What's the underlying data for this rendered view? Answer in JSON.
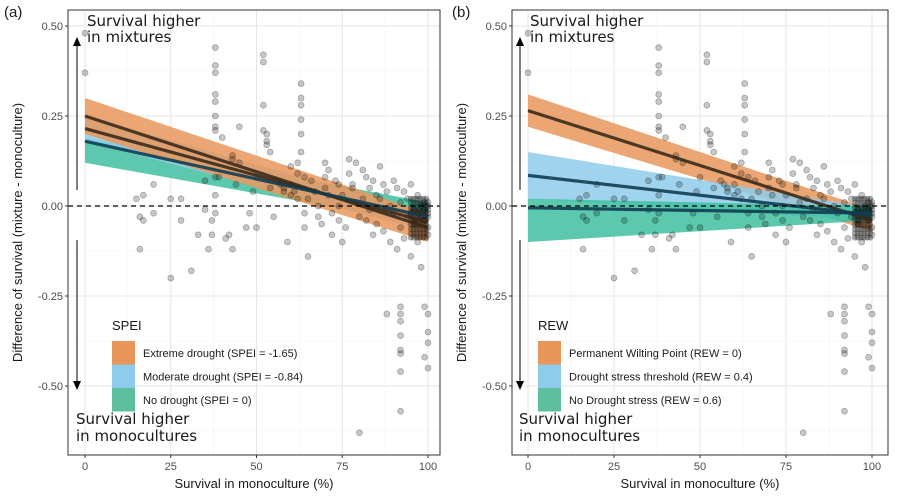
{
  "chart_data": [
    {
      "panel_label": "(a)",
      "type": "scatter",
      "xlabel": "Survival in monoculture (%)",
      "ylabel": "Difference of survival (mixture - monoculture)",
      "xlim": [
        -4,
        104
      ],
      "ylim": [
        -0.67,
        0.53
      ],
      "xticks": [
        0,
        25,
        50,
        75,
        100
      ],
      "xtick_labels": [
        "0",
        "25",
        "50",
        "75",
        "100"
      ],
      "yticks": [
        0.5,
        0.25,
        0,
        -0.25,
        -0.5
      ],
      "ytick_labels": [
        "0.50",
        "0.25",
        "0.00",
        "-0.25",
        "-0.50"
      ],
      "grid": true,
      "reference_line": {
        "y": 0,
        "style": "dashed"
      },
      "annotations": {
        "top": [
          "Survival higher",
          "in mixtures"
        ],
        "bottom": [
          "Survival higher",
          "in monocultures"
        ]
      },
      "legend": {
        "title": "SPEI",
        "placement": "bottom-left",
        "entries": [
          {
            "label": "Extreme drought (SPEI = -1.65)",
            "color": "#E8965A"
          },
          {
            "label": "Moderate drought (SPEI = -0.84)",
            "color": "#8FCCEB"
          },
          {
            "label": "No drought (SPEI = 0)",
            "color": "#5DBF9E"
          }
        ]
      },
      "series": [
        {
          "name": "Extreme drought (SPEI = -1.65)",
          "color": "#E8965A",
          "line_color": "#3b2a1c",
          "fit": {
            "x": [
              0,
              100
            ],
            "y": [
              0.25,
              -0.06
            ]
          },
          "ci_lower": [
            0.2,
            -0.1
          ],
          "ci_upper": [
            0.3,
            -0.02
          ]
        },
        {
          "name": "Moderate drought (SPEI = -0.84)",
          "color": "#8FCCEB",
          "line_color": "#3b2a1c",
          "fit": {
            "x": [
              0,
              100
            ],
            "y": [
              0.215,
              -0.045
            ]
          },
          "ci_lower": [
            0.18,
            -0.07
          ],
          "ci_upper": [
            0.25,
            -0.02
          ]
        },
        {
          "name": "No drought (SPEI = 0)",
          "color": "#3FBFA0",
          "line_color": "#0f3d52",
          "fit": {
            "x": [
              0,
              100
            ],
            "y": [
              0.18,
              -0.03
            ]
          },
          "ci_lower": [
            0.12,
            -0.05
          ],
          "ci_upper": [
            0.19,
            0.01
          ]
        }
      ]
    },
    {
      "panel_label": "(b)",
      "type": "scatter",
      "xlabel": "Survival in monoculture (%)",
      "ylabel": "Difference of survival (mixture - monoculture)",
      "xlim": [
        -4,
        104
      ],
      "ylim": [
        -0.67,
        0.53
      ],
      "xticks": [
        0,
        25,
        50,
        75,
        100
      ],
      "xtick_labels": [
        "0",
        "25",
        "50",
        "75",
        "100"
      ],
      "yticks": [
        0.5,
        0.25,
        0,
        -0.25,
        -0.5
      ],
      "ytick_labels": [
        "0.50",
        "0.25",
        "0.00",
        "-0.25",
        "-0.50"
      ],
      "grid": true,
      "reference_line": {
        "y": 0,
        "style": "dashed"
      },
      "annotations": {
        "top": [
          "Survival higher",
          "in mixtures"
        ],
        "bottom": [
          "Survival higher",
          "in monocultures"
        ]
      },
      "legend": {
        "title": "REW",
        "placement": "bottom-left",
        "entries": [
          {
            "label": "Permanent Wilting Point (REW = 0)",
            "color": "#E8965A"
          },
          {
            "label": "Drought stress threshold (REW = 0.4)",
            "color": "#8FCCEB"
          },
          {
            "label": "No Drought stress (REW = 0.6)",
            "color": "#5DBF9E"
          }
        ]
      },
      "series": [
        {
          "name": "Permanent Wilting Point (REW = 0)",
          "color": "#E8965A",
          "line_color": "#3b2a1c",
          "fit": {
            "x": [
              0,
              100
            ],
            "y": [
              0.265,
              -0.04
            ]
          },
          "ci_lower": [
            0.22,
            -0.07
          ],
          "ci_upper": [
            0.31,
            -0.01
          ]
        },
        {
          "name": "Drought stress threshold (REW = 0.4)",
          "color": "#8FCCEB",
          "line_color": "#0f3d52",
          "fit": {
            "x": [
              0,
              100
            ],
            "y": [
              0.085,
              -0.025
            ]
          },
          "ci_lower": [
            0.02,
            -0.04
          ],
          "ci_upper": [
            0.15,
            -0.005
          ]
        },
        {
          "name": "No Drought stress (REW = 0.6)",
          "color": "#3FBFA0",
          "line_color": "#0f3d52",
          "fit": {
            "x": [
              0,
              100
            ],
            "y": [
              -0.005,
              -0.02
            ]
          },
          "ci_lower": [
            -0.1,
            -0.04
          ],
          "ci_upper": [
            0.02,
            0.0
          ]
        }
      ]
    }
  ],
  "points": [
    [
      0,
      0.48
    ],
    [
      0,
      0.37
    ],
    [
      15,
      0.02
    ],
    [
      16,
      -0.03
    ],
    [
      16,
      -0.12
    ],
    [
      17,
      0.03
    ],
    [
      17,
      -0.04
    ],
    [
      20,
      0.06
    ],
    [
      20,
      -0.02
    ],
    [
      25,
      0.02
    ],
    [
      25,
      -0.2
    ],
    [
      28,
      0.02
    ],
    [
      28,
      -0.04
    ],
    [
      31,
      -0.18
    ],
    [
      33,
      -0.08
    ],
    [
      35,
      0.07
    ],
    [
      35,
      -0.01
    ],
    [
      36,
      -0.12
    ],
    [
      37,
      -0.08
    ],
    [
      37,
      -0.04
    ],
    [
      38,
      0.44
    ],
    [
      38,
      0.39
    ],
    [
      38,
      0.37
    ],
    [
      38,
      0.31
    ],
    [
      38,
      0.29
    ],
    [
      38,
      0.25
    ],
    [
      38,
      0.22
    ],
    [
      38,
      0.21
    ],
    [
      38,
      0.08
    ],
    [
      38,
      0.03
    ],
    [
      38,
      -0.02
    ],
    [
      39,
      0.08
    ],
    [
      40,
      0.19
    ],
    [
      41,
      -0.09
    ],
    [
      42,
      -0.08
    ],
    [
      43,
      0.14
    ],
    [
      43,
      0.13
    ],
    [
      43,
      -0.12
    ],
    [
      44,
      0.06
    ],
    [
      45,
      0.12
    ],
    [
      45,
      0.22
    ],
    [
      47,
      -0.06
    ],
    [
      48,
      -0.02
    ],
    [
      49,
      0.04
    ],
    [
      50,
      0.08
    ],
    [
      50,
      -0.06
    ],
    [
      52,
      0.42
    ],
    [
      52,
      0.4
    ],
    [
      52,
      0.28
    ],
    [
      52,
      0.21
    ],
    [
      53,
      0.2
    ],
    [
      53,
      0.18
    ],
    [
      53,
      0.17
    ],
    [
      54,
      0.15
    ],
    [
      54,
      0.05
    ],
    [
      55,
      -0.03
    ],
    [
      56,
      0.07
    ],
    [
      57,
      0.06
    ],
    [
      58,
      0.05
    ],
    [
      58,
      0.04
    ],
    [
      59,
      -0.1
    ],
    [
      60,
      0.11
    ],
    [
      60,
      0.06
    ],
    [
      60,
      0.03
    ],
    [
      61,
      0.04
    ],
    [
      62,
      0.12
    ],
    [
      62,
      0.09
    ],
    [
      62,
      0.02
    ],
    [
      63,
      0.34
    ],
    [
      63,
      0.3
    ],
    [
      63,
      0.28
    ],
    [
      63,
      0.24
    ],
    [
      63,
      0.2
    ],
    [
      63,
      0.15
    ],
    [
      64,
      0.08
    ],
    [
      64,
      -0.02
    ],
    [
      64,
      -0.06
    ],
    [
      65,
      0.02
    ],
    [
      65,
      -0.14
    ],
    [
      66,
      0.07
    ],
    [
      67,
      0.04
    ],
    [
      68,
      0.0
    ],
    [
      68,
      -0.03
    ],
    [
      69,
      -0.05
    ],
    [
      70,
      0.12
    ],
    [
      70,
      0.08
    ],
    [
      70,
      0.05
    ],
    [
      71,
      0.1
    ],
    [
      71,
      0.03
    ],
    [
      72,
      -0.02
    ],
    [
      72,
      -0.08
    ],
    [
      73,
      0.07
    ],
    [
      74,
      0.06
    ],
    [
      74,
      0.0
    ],
    [
      74,
      -0.04
    ],
    [
      75,
      0.03
    ],
    [
      75,
      -0.1
    ],
    [
      76,
      -0.06
    ],
    [
      77,
      0.09
    ],
    [
      77,
      0.13
    ],
    [
      78,
      0.06
    ],
    [
      78,
      0.05
    ],
    [
      79,
      0.12
    ],
    [
      79,
      0.01
    ],
    [
      80,
      -0.03
    ],
    [
      80,
      -0.63
    ],
    [
      81,
      0.1
    ],
    [
      81,
      0.02
    ],
    [
      82,
      0.08
    ],
    [
      82,
      -0.04
    ],
    [
      83,
      0.05
    ],
    [
      83,
      -0.01
    ],
    [
      84,
      0.07
    ],
    [
      84,
      -0.08
    ],
    [
      85,
      0.03
    ],
    [
      85,
      -0.05
    ],
    [
      86,
      0.11
    ],
    [
      86,
      0.02
    ],
    [
      87,
      -0.07
    ],
    [
      87,
      0.06
    ],
    [
      88,
      -0.3
    ],
    [
      88,
      0.04
    ],
    [
      89,
      0.0
    ],
    [
      89,
      -0.1
    ],
    [
      90,
      0.07
    ],
    [
      90,
      -0.02
    ],
    [
      91,
      -0.12
    ],
    [
      91,
      0.05
    ],
    [
      92,
      -0.28
    ],
    [
      92,
      -0.3
    ],
    [
      92,
      -0.32
    ],
    [
      92,
      -0.36
    ],
    [
      92,
      -0.4
    ],
    [
      92,
      -0.41
    ],
    [
      92,
      -0.46
    ],
    [
      92,
      -0.57
    ],
    [
      92,
      0.01
    ],
    [
      92,
      -0.06
    ],
    [
      93,
      0.04
    ],
    [
      93,
      -0.09
    ],
    [
      94,
      -0.03
    ],
    [
      94,
      0.02
    ],
    [
      95,
      -0.14
    ],
    [
      95,
      0.06
    ],
    [
      96,
      -0.05
    ],
    [
      96,
      -0.01
    ],
    [
      97,
      -0.1
    ],
    [
      97,
      0.03
    ],
    [
      98,
      -0.17
    ],
    [
      98,
      -0.02
    ],
    [
      98,
      0.0
    ],
    [
      99,
      -0.28
    ],
    [
      99,
      -0.42
    ],
    [
      99,
      -0.04
    ],
    [
      99,
      0.01
    ],
    [
      100,
      -0.3
    ],
    [
      100,
      -0.35
    ],
    [
      100,
      -0.45
    ],
    [
      100,
      -0.38
    ],
    [
      100,
      -0.03
    ],
    [
      100,
      0.0
    ],
    [
      100,
      -0.01
    ],
    [
      100,
      -0.02
    ],
    [
      100,
      0.01
    ],
    [
      99,
      -0.01
    ],
    [
      98,
      -0.03
    ],
    [
      97,
      -0.02
    ],
    [
      96,
      -0.04
    ],
    [
      95,
      -0.02
    ],
    [
      100,
      -0.06
    ],
    [
      100,
      -0.08
    ]
  ]
}
